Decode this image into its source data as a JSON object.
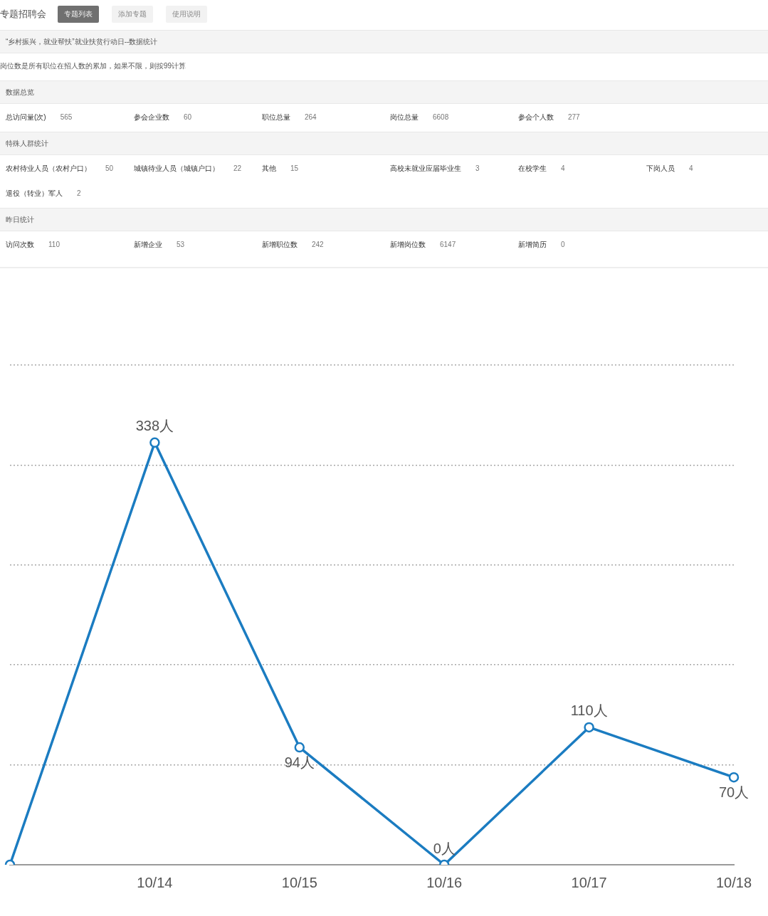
{
  "chart_data": [
    {
      "type": "other",
      "title": "专题招聘会",
      "annotations": [
        "专题列表",
        "添加专题",
        "使用说明"
      ]
    },
    {
      "type": "other",
      "title": "“乡村振兴，就业帮扶”就业扶贫行动日--数据统计",
      "annotations": [
        "岗位数是所有职位在招人数的累加，如果不限，则按99计算"
      ]
    },
    {
      "type": "other",
      "title": "数据总览",
      "categories": [
        "总访问量(次)",
        "参会企业数",
        "职位总量",
        "岗位总量",
        "参会个人数"
      ],
      "values": [
        565,
        60,
        264,
        6608,
        277
      ],
      "data_labels": true
    },
    {
      "type": "other",
      "title": "特殊人群统计",
      "categories": [
        "农村待业人员（农村户口）",
        "城镇待业人员（城镇户口）",
        "其他",
        "高校未就业应届毕业生",
        "在校学生",
        "下岗人员",
        "退役（转业）军人"
      ],
      "values": [
        50,
        22,
        15,
        3,
        4,
        4,
        2
      ],
      "data_labels": true
    },
    {
      "type": "other",
      "title": "昨日统计",
      "categories": [
        "访问次数",
        "新增企业",
        "新增职位数",
        "新增岗位数",
        "新增简历"
      ],
      "values": [
        110,
        53,
        242,
        6147,
        0
      ],
      "data_labels": true
    },
    {
      "type": "line",
      "categories": [
        null,
        "10/14",
        "10/15",
        "10/16",
        "10/17",
        "10/18"
      ],
      "values": [
        0,
        338,
        94,
        0,
        110,
        70
      ],
      "value_labels": [
        null,
        "338人",
        "94人",
        "0人",
        "110人",
        "70人"
      ],
      "color": "#1b7cc1",
      "ylim": [
        0,
        400
      ],
      "yticks": [
        {
          "value": 0,
          "label": null
        },
        {
          "value": 80,
          "label": null
        },
        {
          "value": 160,
          "label": null
        },
        {
          "value": 240,
          "label": null
        },
        {
          "value": 320,
          "label": null
        },
        {
          "value": 400,
          "label": null
        }
      ],
      "grid": "y",
      "tick_labels": "x",
      "marker": "circle",
      "line_style": "solid"
    }
  ]
}
